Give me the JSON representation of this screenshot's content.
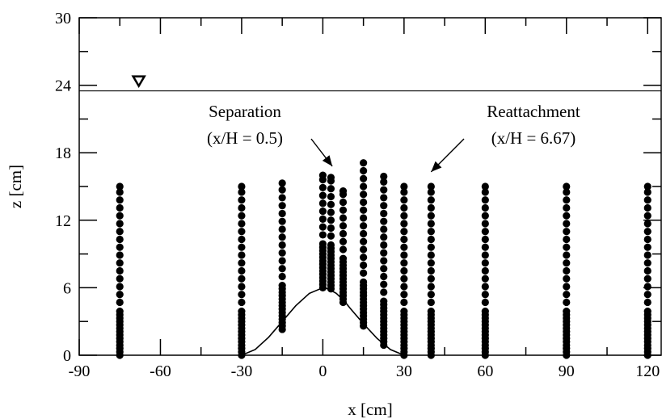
{
  "chart_data": {
    "type": "scatter",
    "xlabel": "x [cm]",
    "ylabel": "z [cm]",
    "xlim": [
      -90,
      125
    ],
    "ylim": [
      0,
      30
    ],
    "x_ticks": [
      -90,
      -60,
      -30,
      0,
      30,
      60,
      90,
      120
    ],
    "y_ticks": [
      0,
      6,
      12,
      18,
      24,
      30
    ],
    "x_tick_labels": [
      "-90",
      "-60",
      "-30",
      "0",
      "30",
      "60",
      "90",
      "120"
    ],
    "y_tick_labels": [
      "0",
      "6",
      "12",
      "18",
      "24",
      "30"
    ],
    "grid": false,
    "water_surface": {
      "z": 23.5,
      "marker_x": -68
    },
    "bed_profile": {
      "x": [
        -30,
        -25,
        -20,
        -15,
        -10,
        -5,
        0,
        2,
        5,
        8,
        10,
        15,
        20,
        25,
        30
      ],
      "z": [
        0,
        0.5,
        1.6,
        3.0,
        4.4,
        5.5,
        6.0,
        5.9,
        5.5,
        4.8,
        4.2,
        2.8,
        1.5,
        0.5,
        0
      ]
    },
    "profiles": [
      {
        "x": -75,
        "z_bottom": 0,
        "z_top": 15
      },
      {
        "x": -30,
        "z_bottom": 0,
        "z_top": 15
      },
      {
        "x": -15,
        "z_bottom": 2.3,
        "z_top": 15.3
      },
      {
        "x": 0,
        "z_bottom": 6.0,
        "z_top": 16
      },
      {
        "x": 3,
        "z_bottom": 5.9,
        "z_top": 15.8
      },
      {
        "x": 7.5,
        "z_bottom": 4.7,
        "z_top": 14.6
      },
      {
        "x": 15,
        "z_bottom": 2.6,
        "z_top": 17.2
      },
      {
        "x": 22.5,
        "z_bottom": 0.9,
        "z_top": 15.9
      },
      {
        "x": 30,
        "z_bottom": 0,
        "z_top": 15
      },
      {
        "x": 40,
        "z_bottom": 0,
        "z_top": 15
      },
      {
        "x": 60,
        "z_bottom": 0,
        "z_top": 15
      },
      {
        "x": 90,
        "z_bottom": 0,
        "z_top": 15
      },
      {
        "x": 120,
        "z_bottom": 0,
        "z_top": 15
      }
    ],
    "annotations": [
      {
        "lines": [
          "Separation",
          "(x/H = 0.5)"
        ],
        "arrow_to": {
          "x": 3.5,
          "z": 16.8
        }
      },
      {
        "lines": [
          "Reattachment",
          "(x/H = 6.67)"
        ],
        "arrow_to": {
          "x": 40,
          "z": 16.3
        }
      }
    ]
  }
}
